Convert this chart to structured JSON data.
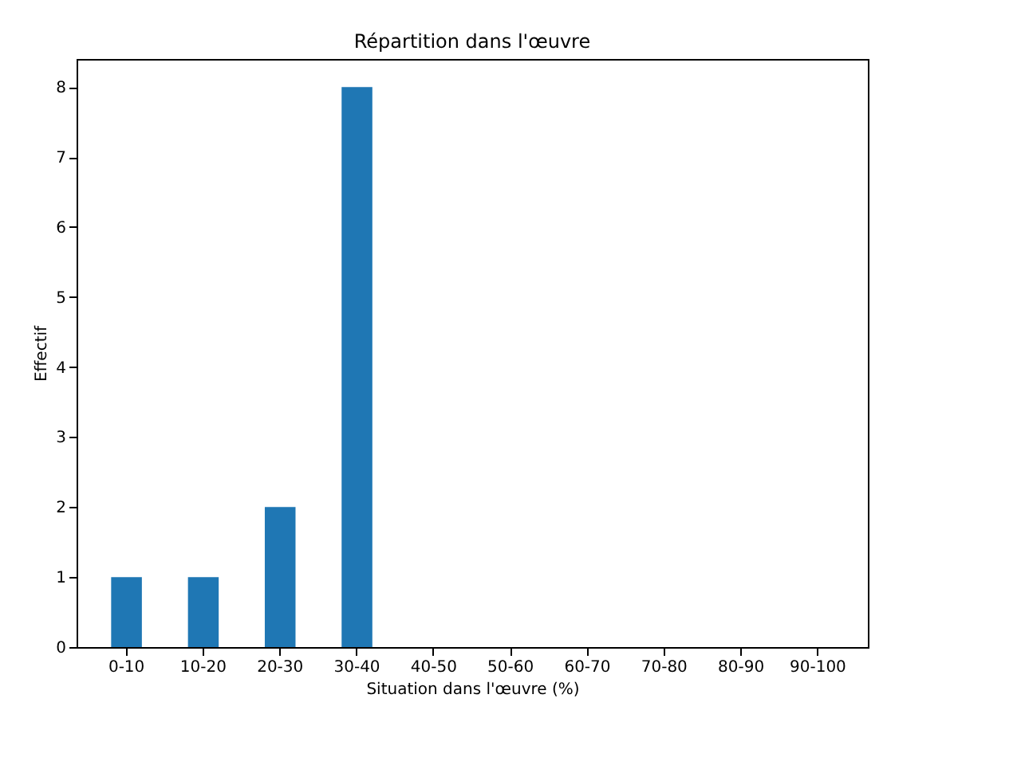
{
  "chart_data": {
    "type": "bar",
    "title": "Répartition dans l'œuvre",
    "xlabel": "Situation dans l'œuvre (%)",
    "ylabel": "Effectif",
    "categories": [
      "0-10",
      "10-20",
      "20-30",
      "30-40",
      "40-50",
      "50-60",
      "60-70",
      "70-80",
      "80-90",
      "90-100"
    ],
    "values": [
      1,
      1,
      2,
      8,
      0,
      0,
      0,
      0,
      0,
      0
    ],
    "color": "#1f77b4",
    "ylim": [
      0,
      8.4
    ],
    "yticks": [
      0,
      1,
      2,
      3,
      4,
      5,
      6,
      7,
      8
    ],
    "grid": false
  }
}
